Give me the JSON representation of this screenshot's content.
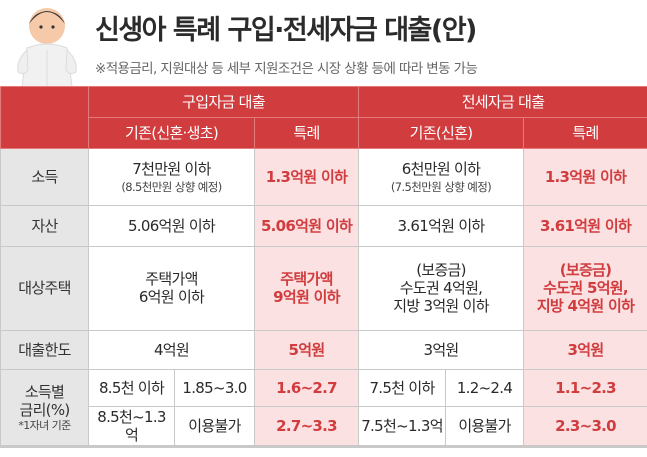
{
  "title": "신생아 특례 구입·전세자금 대출(안)",
  "note": "※적용금리, 지원대상 등 세부 지원조건은 시장 상황 등에 따라 변동 가능",
  "colors": {
    "accent": "#d13c3f",
    "highlight_bg": "#fbe1e1",
    "label_bg": "#e6e6e6"
  },
  "header": {
    "purchase": "구입자금 대출",
    "jeonse": "전세자금 대출",
    "purchase_existing": "기존(신혼·생초)",
    "purchase_special": "특례",
    "jeonse_existing": "기존(신혼)",
    "jeonse_special": "특례"
  },
  "rows": {
    "income": {
      "label": "소득",
      "purchase_existing": "7천만원 이하",
      "purchase_existing_note": "(8.5천만원 상향 예정)",
      "purchase_special": "1.3억원 이하",
      "jeonse_existing": "6천만원 이하",
      "jeonse_existing_note": "(7.5천만원 상향 예정)",
      "jeonse_special": "1.3억원 이하"
    },
    "asset": {
      "label": "자산",
      "purchase_existing": "5.06억원 이하",
      "purchase_special": "5.06억원 이하",
      "jeonse_existing": "3.61억원 이하",
      "jeonse_special": "3.61억원 이하"
    },
    "house": {
      "label": "대상주택",
      "purchase_existing_1": "주택가액",
      "purchase_existing_2": "6억원 이하",
      "purchase_special_1": "주택가액",
      "purchase_special_2": "9억원 이하",
      "jeonse_existing_1": "(보증금)",
      "jeonse_existing_2": "수도권 4억원,",
      "jeonse_existing_3": "지방 3억원 이하",
      "jeonse_special_1": "(보증금)",
      "jeonse_special_2": "수도권 5억원,",
      "jeonse_special_3": "지방 4억원 이하"
    },
    "limit": {
      "label": "대출한도",
      "purchase_existing": "4억원",
      "purchase_special": "5억원",
      "jeonse_existing": "3억원",
      "jeonse_special": "3억원"
    },
    "rate": {
      "label_1": "소득별",
      "label_2": "금리(%)",
      "label_note": "*1자녀 기준",
      "r1": {
        "purchase_income": "8.5천 이하",
        "purchase_rate": "1.85~3.0",
        "purchase_special": "1.6~2.7",
        "jeonse_income": "7.5천 이하",
        "jeonse_rate": "1.2~2.4",
        "jeonse_special": "1.1~2.3"
      },
      "r2": {
        "purchase_income": "8.5천~1.3억",
        "purchase_rate": "이용불가",
        "purchase_special": "2.7~3.3",
        "jeonse_income": "7.5천~1.3억",
        "jeonse_rate": "이용불가",
        "jeonse_special": "2.3~3.0"
      }
    }
  }
}
